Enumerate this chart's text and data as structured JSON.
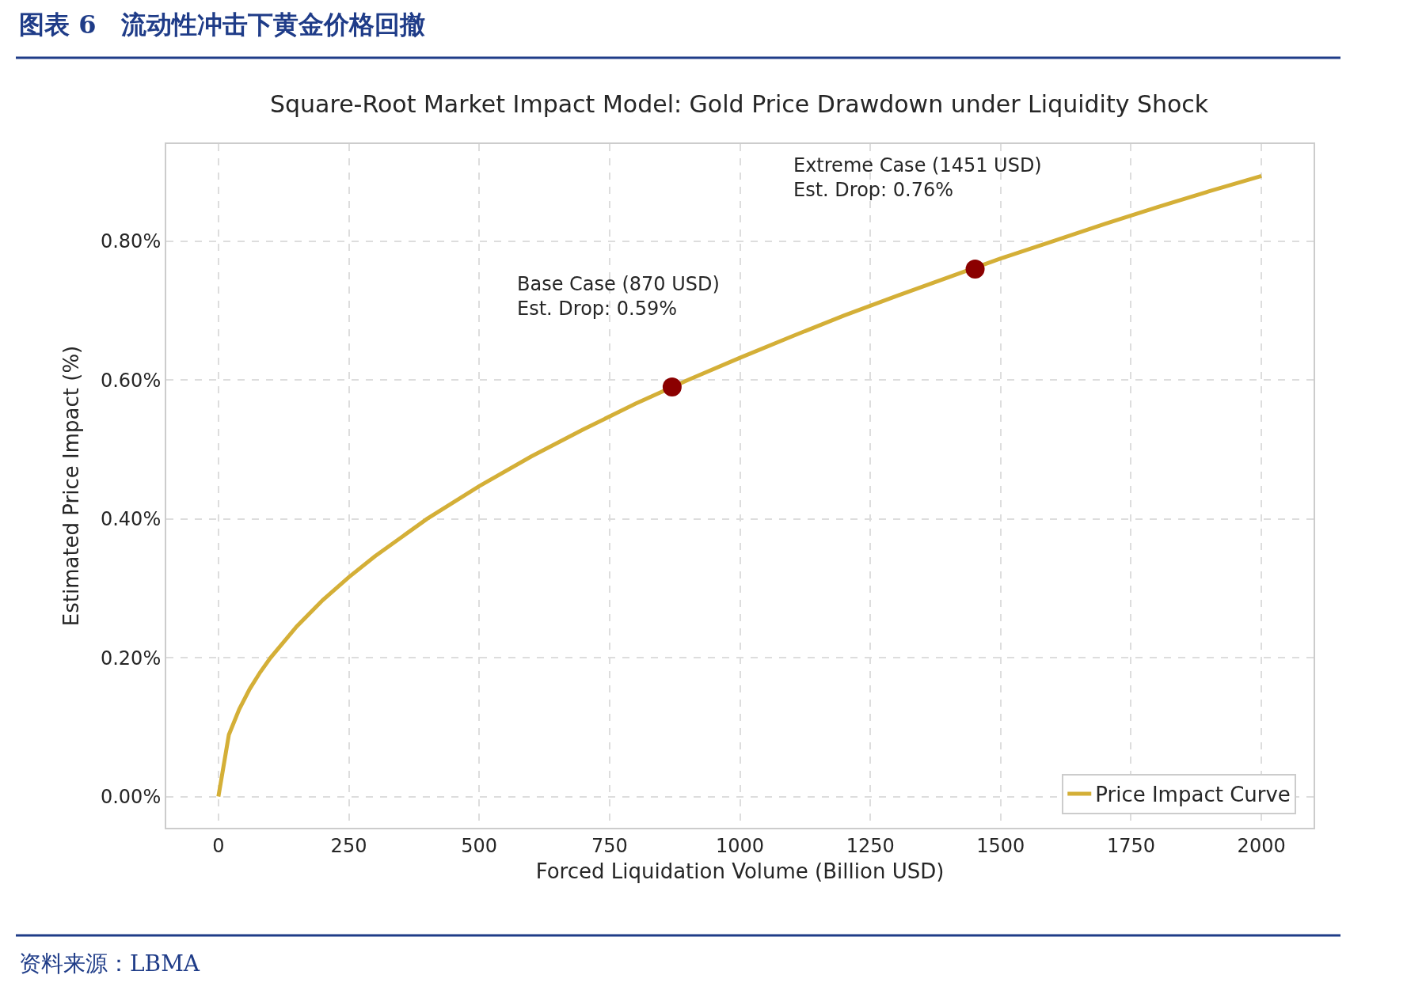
{
  "chart_data": {
    "type": "line",
    "title": "图表 6　流动性冲击下黄金价格回撤",
    "subtitle": "Square-Root Market Impact Model: Gold Price Drawdown under Liquidity Shock",
    "xlabel": "Forced Liquidation Volume (Billion USD)",
    "ylabel": "Estimated Price Impact (%)",
    "x": [
      0,
      20,
      40,
      60,
      80,
      100,
      150,
      200,
      250,
      300,
      400,
      500,
      600,
      700,
      800,
      900,
      1000,
      1100,
      1200,
      1300,
      1400,
      1500,
      1600,
      1700,
      1800,
      1900,
      2000
    ],
    "series": [
      {
        "name": "Price Impact Curve",
        "color": "#d4af37",
        "values": [
          0,
          0.089,
          0.126,
          0.155,
          0.179,
          0.2,
          0.245,
          0.283,
          0.316,
          0.346,
          0.4,
          0.447,
          0.49,
          0.529,
          0.566,
          0.6,
          0.632,
          0.663,
          0.693,
          0.721,
          0.748,
          0.775,
          0.8,
          0.825,
          0.849,
          0.872,
          0.894
        ]
      },
      {
        "type": "scatter",
        "color": "#8b0000",
        "marker": "circle",
        "x": [
          870,
          1451
        ],
        "values": [
          0.59,
          0.76
        ]
      }
    ],
    "annotations": [
      "Base Case (870 USD)\nEst. Drop: 0.59%",
      "Extreme Case (1451 USD)\nEst. Drop: 0.76%",
      "资料来源：LBMA"
    ],
    "xlim": [
      -100,
      2100
    ],
    "xticks": [
      0,
      250,
      500,
      750,
      1000,
      1250,
      1500,
      1750,
      2000
    ],
    "ylim": [
      -0.045,
      0.94
    ],
    "yticks": [
      {
        "value": 0,
        "label": "0.00%"
      },
      {
        "value": 0.2,
        "label": "0.20%"
      },
      {
        "value": 0.4,
        "label": "0.40%"
      },
      {
        "value": 0.6,
        "label": "0.60%"
      },
      {
        "value": 0.8,
        "label": "0.80%"
      }
    ],
    "grid": true,
    "legend": "bottom right",
    "line_style": "solid"
  }
}
